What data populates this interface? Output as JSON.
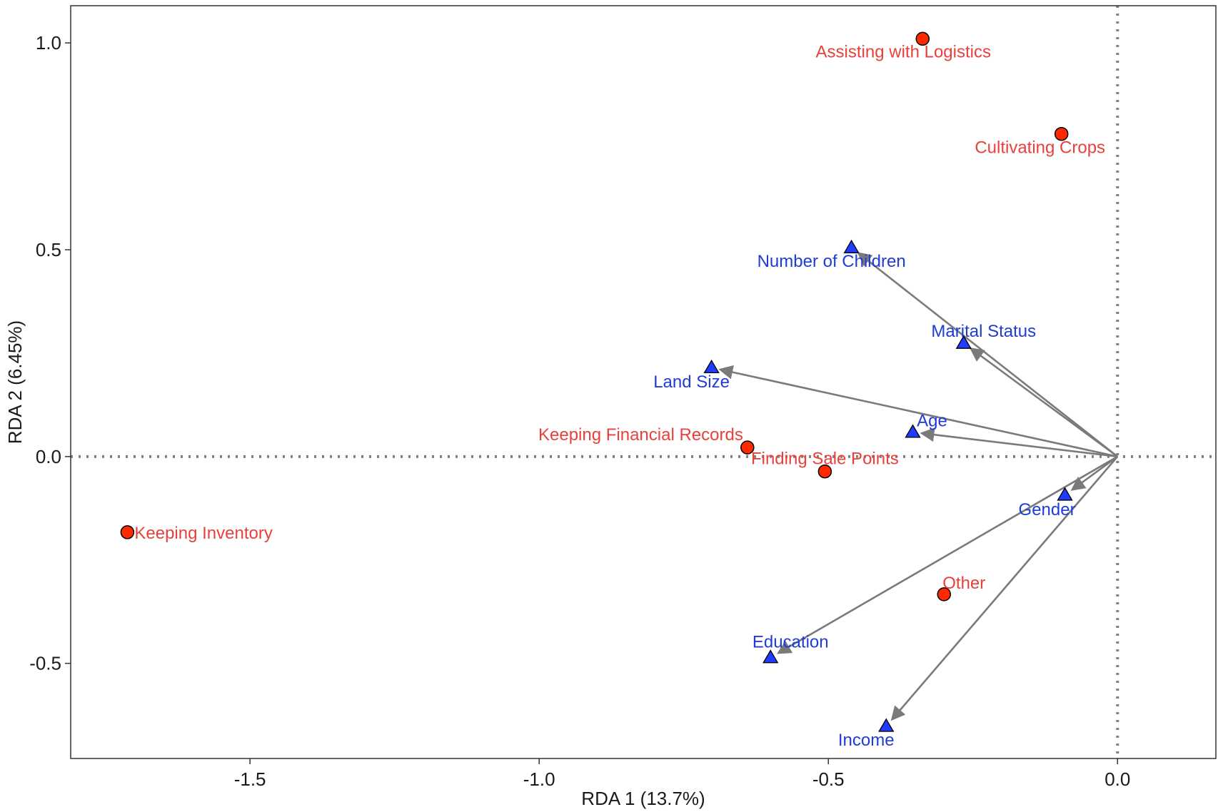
{
  "chart_data": {
    "type": "scatter",
    "subtype": "rda-biplot",
    "xlabel": "RDA 1 (13.7%)",
    "ylabel": "RDA 2 (6.45%)",
    "xlim": [
      -1.81,
      0.17
    ],
    "ylim": [
      -0.73,
      1.09
    ],
    "x_ticks": [
      {
        "value": -1.5,
        "label": "-1.5"
      },
      {
        "value": -1.0,
        "label": "-1.0"
      },
      {
        "value": -0.5,
        "label": "-0.5"
      },
      {
        "value": 0.0,
        "label": "0.0"
      }
    ],
    "y_ticks": [
      {
        "value": -0.5,
        "label": "-0.5"
      },
      {
        "value": 0.0,
        "label": "0.0"
      },
      {
        "value": 0.5,
        "label": "0.5"
      },
      {
        "value": 1.0,
        "label": "1.0"
      }
    ],
    "reference_lines": {
      "x": 0,
      "y": 0,
      "style": "dotted"
    },
    "grid": false,
    "response_points": [
      {
        "name": "Assisting with Logistics",
        "x": -0.337,
        "y": 1.01
      },
      {
        "name": "Cultivating Crops",
        "x": -0.097,
        "y": 0.78
      },
      {
        "name": "Keeping Financial Records",
        "x": -0.64,
        "y": 0.022
      },
      {
        "name": "Finding Sale Points",
        "x": -0.506,
        "y": -0.036
      },
      {
        "name": "Keeping Inventory",
        "x": -1.712,
        "y": -0.183
      },
      {
        "name": "Other",
        "x": -0.3,
        "y": -0.333
      }
    ],
    "explanatory_vectors": [
      {
        "name": "Number of Children",
        "x": -0.46,
        "y": 0.505
      },
      {
        "name": "Marital Status",
        "x": -0.266,
        "y": 0.274
      },
      {
        "name": "Land Size",
        "x": -0.702,
        "y": 0.215
      },
      {
        "name": "Age",
        "x": -0.354,
        "y": 0.059
      },
      {
        "name": "Gender",
        "x": -0.091,
        "y": -0.093
      },
      {
        "name": "Education",
        "x": -0.6,
        "y": -0.486
      },
      {
        "name": "Income",
        "x": -0.4,
        "y": -0.652
      }
    ],
    "colors": {
      "response_fill": "#ff2a00",
      "response_label": "#e8413c",
      "vector_fill": "#1f3cff",
      "vector_label": "#1f3cd6",
      "arrow": "#7a7a7a",
      "reference_line": "#808080",
      "frame": "#333333"
    }
  }
}
